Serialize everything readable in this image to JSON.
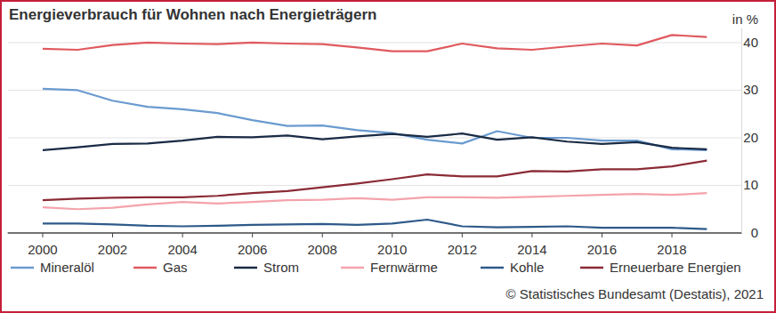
{
  "chart_data": {
    "type": "line",
    "title": "Energieverbrauch für Wohnen nach Energieträgern",
    "y_label": "in %",
    "source": "© Statistisches Bundesamt (Destatis), 2021",
    "x": [
      2000,
      2001,
      2002,
      2003,
      2004,
      2005,
      2006,
      2007,
      2008,
      2009,
      2010,
      2011,
      2012,
      2013,
      2014,
      2015,
      2016,
      2017,
      2018,
      2019
    ],
    "xlim": [
      1999,
      2020
    ],
    "xticks": [
      2000,
      2002,
      2004,
      2006,
      2008,
      2010,
      2012,
      2014,
      2016,
      2018
    ],
    "ylim": [
      0,
      43
    ],
    "yticks": [
      0,
      10,
      20,
      30,
      40
    ],
    "grid": true,
    "legend": "bottom",
    "series": [
      {
        "name": "Mineralöl",
        "color": "#6a9bd0",
        "values": [
          30.3,
          30.0,
          27.8,
          26.5,
          26.0,
          25.2,
          23.7,
          22.5,
          22.6,
          21.6,
          21.0,
          19.6,
          18.8,
          21.4,
          20.0,
          20.0,
          19.4,
          19.4,
          17.6,
          17.4
        ]
      },
      {
        "name": "Gas",
        "color": "#e05a5f",
        "values": [
          38.7,
          38.5,
          39.5,
          40.0,
          39.8,
          39.7,
          40.0,
          39.8,
          39.7,
          39.0,
          38.2,
          38.2,
          39.8,
          38.8,
          38.5,
          39.2,
          39.8,
          39.4,
          41.6,
          41.2
        ]
      },
      {
        "name": "Strom",
        "color": "#1a2b45",
        "values": [
          17.4,
          18.0,
          18.7,
          18.8,
          19.4,
          20.2,
          20.1,
          20.5,
          19.7,
          20.3,
          20.8,
          20.2,
          20.9,
          19.6,
          20.1,
          19.2,
          18.7,
          19.1,
          17.9,
          17.6
        ]
      },
      {
        "name": "Fernwärme",
        "color": "#f4a3ab",
        "values": [
          5.4,
          5.0,
          5.3,
          6.0,
          6.5,
          6.2,
          6.5,
          6.9,
          7.0,
          7.3,
          7.0,
          7.5,
          7.5,
          7.4,
          7.6,
          7.8,
          8.0,
          8.2,
          8.0,
          8.4
        ]
      },
      {
        "name": "Kohle",
        "color": "#2e5a8a",
        "values": [
          2.0,
          2.0,
          1.8,
          1.5,
          1.4,
          1.5,
          1.7,
          1.8,
          1.9,
          1.7,
          2.0,
          2.8,
          1.4,
          1.2,
          1.3,
          1.4,
          1.1,
          1.1,
          1.1,
          0.8
        ]
      },
      {
        "name": "Erneuerbare Energien",
        "color": "#8b2b35",
        "values": [
          6.9,
          7.2,
          7.4,
          7.5,
          7.5,
          7.8,
          8.4,
          8.8,
          9.6,
          10.4,
          11.3,
          12.3,
          11.9,
          11.9,
          13.0,
          12.9,
          13.4,
          13.4,
          14.0,
          15.2
        ]
      }
    ]
  }
}
